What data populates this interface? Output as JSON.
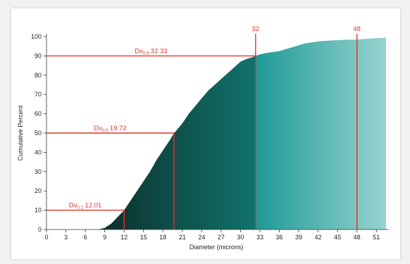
{
  "chart_data": {
    "type": "area",
    "xlabel": "Diameter (microns)",
    "ylabel": "Cumulative Percent",
    "xlim": [
      0,
      52.5
    ],
    "ylim": [
      0,
      100
    ],
    "x_ticks": [
      0,
      3,
      6,
      9,
      12,
      15,
      18,
      21,
      24,
      27,
      30,
      33,
      36,
      39,
      42,
      45,
      48,
      51
    ],
    "y_ticks": [
      0,
      10,
      20,
      30,
      40,
      50,
      60,
      70,
      80,
      90,
      100
    ],
    "grid": false,
    "series": [
      {
        "x": [
          0,
          8,
          9,
          10,
          11,
          12,
          13,
          14,
          15,
          16,
          17,
          18,
          19,
          19.72,
          20,
          21,
          22,
          23,
          24,
          25,
          26,
          27,
          28,
          29,
          30,
          31,
          32,
          32.33,
          33,
          34,
          35,
          36,
          37,
          38,
          39,
          40,
          42,
          44,
          46,
          48,
          50,
          52.5
        ],
        "y": [
          0,
          0,
          0.8,
          3,
          6.5,
          10,
          15,
          20,
          25,
          30,
          36,
          41,
          46,
          50,
          51,
          55,
          60,
          64,
          68,
          72,
          75,
          78,
          81,
          84,
          87,
          88.5,
          89.5,
          90,
          90.8,
          91.5,
          92,
          92.5,
          93.5,
          94.5,
          95.5,
          96.5,
          97.5,
          98,
          98.3,
          98.5,
          99,
          99.5
        ]
      }
    ],
    "colors": {
      "fill_dark": "#0b2e2b",
      "fill_mid": "#11736c",
      "fill_light_start": "#1e9a95",
      "fill_light_end": "#9ad5d1",
      "marker_line": "#e0322c"
    },
    "markers": {
      "horizontal": [
        {
          "y": 10,
          "x_end": 12.01,
          "label_main": "Dv",
          "label_sub": "0.1",
          "label_value": "12.01"
        },
        {
          "y": 50,
          "x_end": 19.72,
          "label_main": "Dv",
          "label_sub": "0.5",
          "label_value": "19.72"
        },
        {
          "y": 90,
          "x_end": 32.33,
          "label_main": "Dv",
          "label_sub": "0.9",
          "label_value": "32.33"
        }
      ],
      "vertical": [
        {
          "x": 12.01,
          "y_end": 10,
          "label": ""
        },
        {
          "x": 19.72,
          "y_end": 50,
          "label": ""
        },
        {
          "x": 32.33,
          "y_end": 100,
          "label": "32"
        },
        {
          "x": 48,
          "y_end": 100,
          "label": "48"
        }
      ]
    }
  }
}
